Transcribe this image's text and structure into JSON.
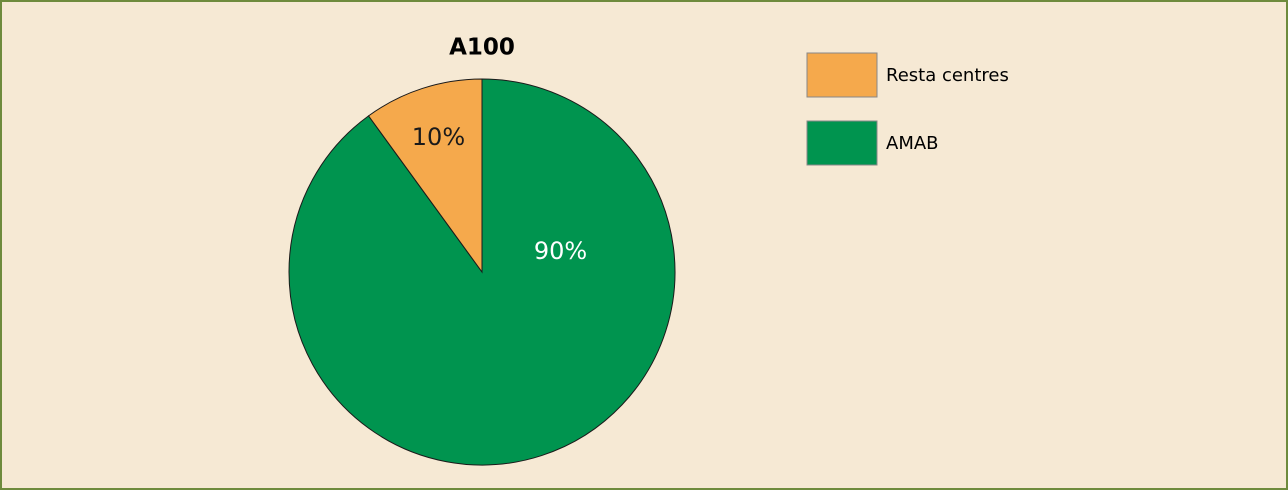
{
  "chart_data": {
    "type": "pie",
    "title": "A100",
    "categories": [
      "Resta centres",
      "AMAB"
    ],
    "values": [
      10,
      90
    ],
    "value_labels": [
      "10%",
      "90%"
    ],
    "colors": [
      "#f5a94c",
      "#00944f"
    ],
    "legend": "upper right"
  }
}
